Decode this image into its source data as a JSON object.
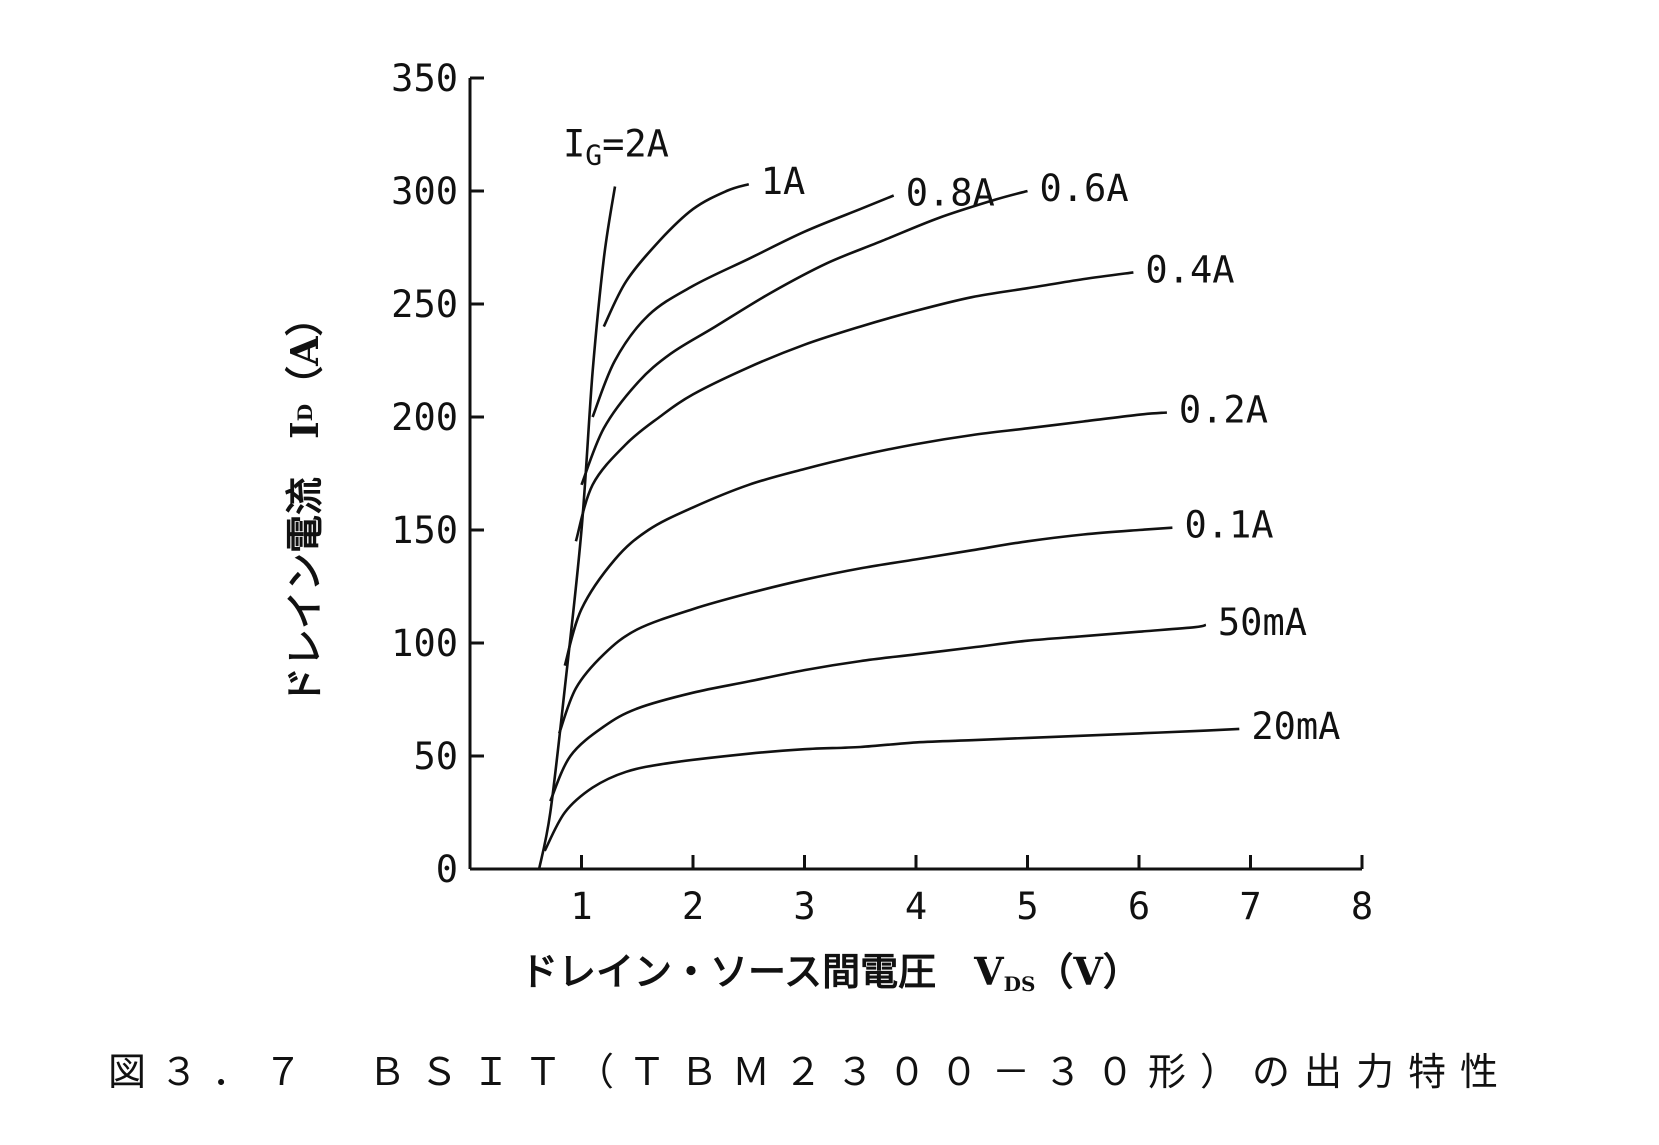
{
  "chart_data": {
    "type": "line",
    "xlabel": "ドレイン・ソース間電圧　V",
    "xlabel_sub": "DS",
    "xlabel_unit": "（V）",
    "ylabel": "ドレイン電流　I",
    "ylabel_sub": "D",
    "ylabel_unit": "（A）",
    "xlim": [
      0,
      8
    ],
    "ylim": [
      0,
      350
    ],
    "x_ticks": [
      "1",
      "2",
      "3",
      "4",
      "5",
      "6",
      "7",
      "8"
    ],
    "y_ticks": [
      "0",
      "50",
      "100",
      "150",
      "200",
      "250",
      "300",
      "350"
    ],
    "gate_label_prefix": "I",
    "gate_label_sub": "G",
    "series": [
      {
        "name": "=2A",
        "x": [
          0.62,
          0.72,
          0.85,
          1.0,
          1.1,
          1.2,
          1.3
        ],
        "y": [
          0,
          25,
          80,
          150,
          220,
          270,
          302
        ]
      },
      {
        "name": "1A",
        "x": [
          1.2,
          1.4,
          1.7,
          2.0,
          2.3,
          2.5
        ],
        "y": [
          240,
          260,
          278,
          292,
          300,
          303
        ]
      },
      {
        "name": "0.8A",
        "x": [
          1.1,
          1.3,
          1.6,
          2.0,
          2.5,
          3.0,
          3.5,
          3.8
        ],
        "y": [
          200,
          225,
          245,
          258,
          270,
          282,
          292,
          298
        ]
      },
      {
        "name": "0.6A",
        "x": [
          1.0,
          1.2,
          1.5,
          1.8,
          2.2,
          2.7,
          3.2,
          3.7,
          4.2,
          4.7,
          5.0
        ],
        "y": [
          170,
          195,
          215,
          228,
          240,
          255,
          268,
          278,
          288,
          296,
          300
        ]
      },
      {
        "name": "0.4A",
        "x": [
          0.95,
          1.1,
          1.4,
          1.7,
          2.0,
          2.5,
          3.0,
          3.5,
          4.0,
          4.5,
          5.0,
          5.5,
          5.95
        ],
        "y": [
          145,
          170,
          188,
          200,
          210,
          222,
          232,
          240,
          247,
          253,
          257,
          261,
          264
        ]
      },
      {
        "name": "0.2A",
        "x": [
          0.85,
          1.0,
          1.3,
          1.6,
          2.0,
          2.5,
          3.0,
          3.5,
          4.0,
          4.5,
          5.0,
          5.5,
          6.0,
          6.25
        ],
        "y": [
          90,
          115,
          137,
          150,
          160,
          170,
          177,
          183,
          188,
          192,
          195,
          198,
          201,
          202
        ]
      },
      {
        "name": "0.1A",
        "x": [
          0.8,
          0.95,
          1.2,
          1.5,
          2.0,
          2.5,
          3.0,
          3.5,
          4.0,
          4.5,
          5.0,
          5.5,
          6.0,
          6.3
        ],
        "y": [
          60,
          80,
          95,
          106,
          115,
          122,
          128,
          133,
          137,
          141,
          145,
          148,
          150,
          151
        ]
      },
      {
        "name": "50mA",
        "x": [
          0.72,
          0.9,
          1.2,
          1.5,
          2.0,
          2.5,
          3.0,
          3.5,
          4.0,
          4.5,
          5.0,
          5.5,
          6.0,
          6.5,
          6.6
        ],
        "y": [
          30,
          50,
          63,
          71,
          78,
          83,
          88,
          92,
          95,
          98,
          101,
          103,
          105,
          107,
          108
        ]
      },
      {
        "name": "20mA",
        "x": [
          0.67,
          0.85,
          1.1,
          1.4,
          1.8,
          2.5,
          3.0,
          3.5,
          4.0,
          4.5,
          5.0,
          5.5,
          6.0,
          6.5,
          6.9
        ],
        "y": [
          8,
          25,
          36,
          43,
          47,
          51,
          53,
          54,
          56,
          57,
          58,
          59,
          60,
          61,
          62
        ]
      }
    ]
  },
  "caption": "図３．７　ＢＳＩＴ（ＴＢＭ２３００－３０形）の出力特性"
}
